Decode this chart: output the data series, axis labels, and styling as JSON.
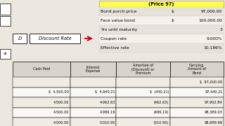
{
  "bg_color": "#ede8df",
  "top_info": {
    "labels": [
      "Bond purch price",
      "Face value bond",
      "Yrs until maturity",
      "Coupon rate",
      "Effective rate"
    ],
    "dollars": [
      "$",
      "$",
      "",
      "",
      ""
    ],
    "values": [
      "97,000.00",
      "100,000.00",
      "3",
      "9.000%",
      "10.186%"
    ]
  },
  "table_headers": [
    "Cash Paid",
    "Interest\nExpense",
    "Amortize of\n(Discount) or\nPremium",
    "Carrying\nAmount of\nBond"
  ],
  "table_rows": [
    [
      "",
      "",
      "",
      "$  97,000.00"
    ],
    [
      "$  4,500.00",
      "$  4,940.21",
      "$  (440.21)",
      "97,440.21"
    ],
    [
      "4,500.00",
      "4,962.63",
      "(462.63)",
      "97,902.84"
    ],
    [
      "4,500.00",
      "4,986.19",
      "(486.19)",
      "98,389.03"
    ],
    [
      "4,500.00",
      "5,010.95",
      "(510.95)",
      "98,899.98"
    ]
  ],
  "highlight_color": "#ffff44",
  "highlight_text": "(Price 97)",
  "arrow_color": "#cc0000",
  "left_box_d_label": "D",
  "left_box_rate_label": "Discount Rate",
  "left_corner_boxes": [
    "al",
    ""
  ]
}
